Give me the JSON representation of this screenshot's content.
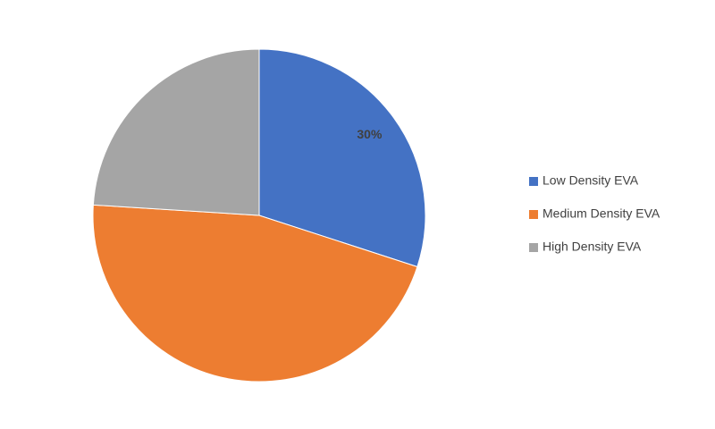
{
  "chart_data": {
    "type": "pie",
    "categories": [
      "Low Density EVA",
      "Medium Density EVA",
      "High Density EVA"
    ],
    "values": [
      30,
      46,
      24
    ],
    "value_labels": [
      "30%",
      null,
      null
    ],
    "colors": [
      "#4472c4",
      "#ed7d31",
      "#a5a5a5"
    ],
    "legend": "right"
  }
}
